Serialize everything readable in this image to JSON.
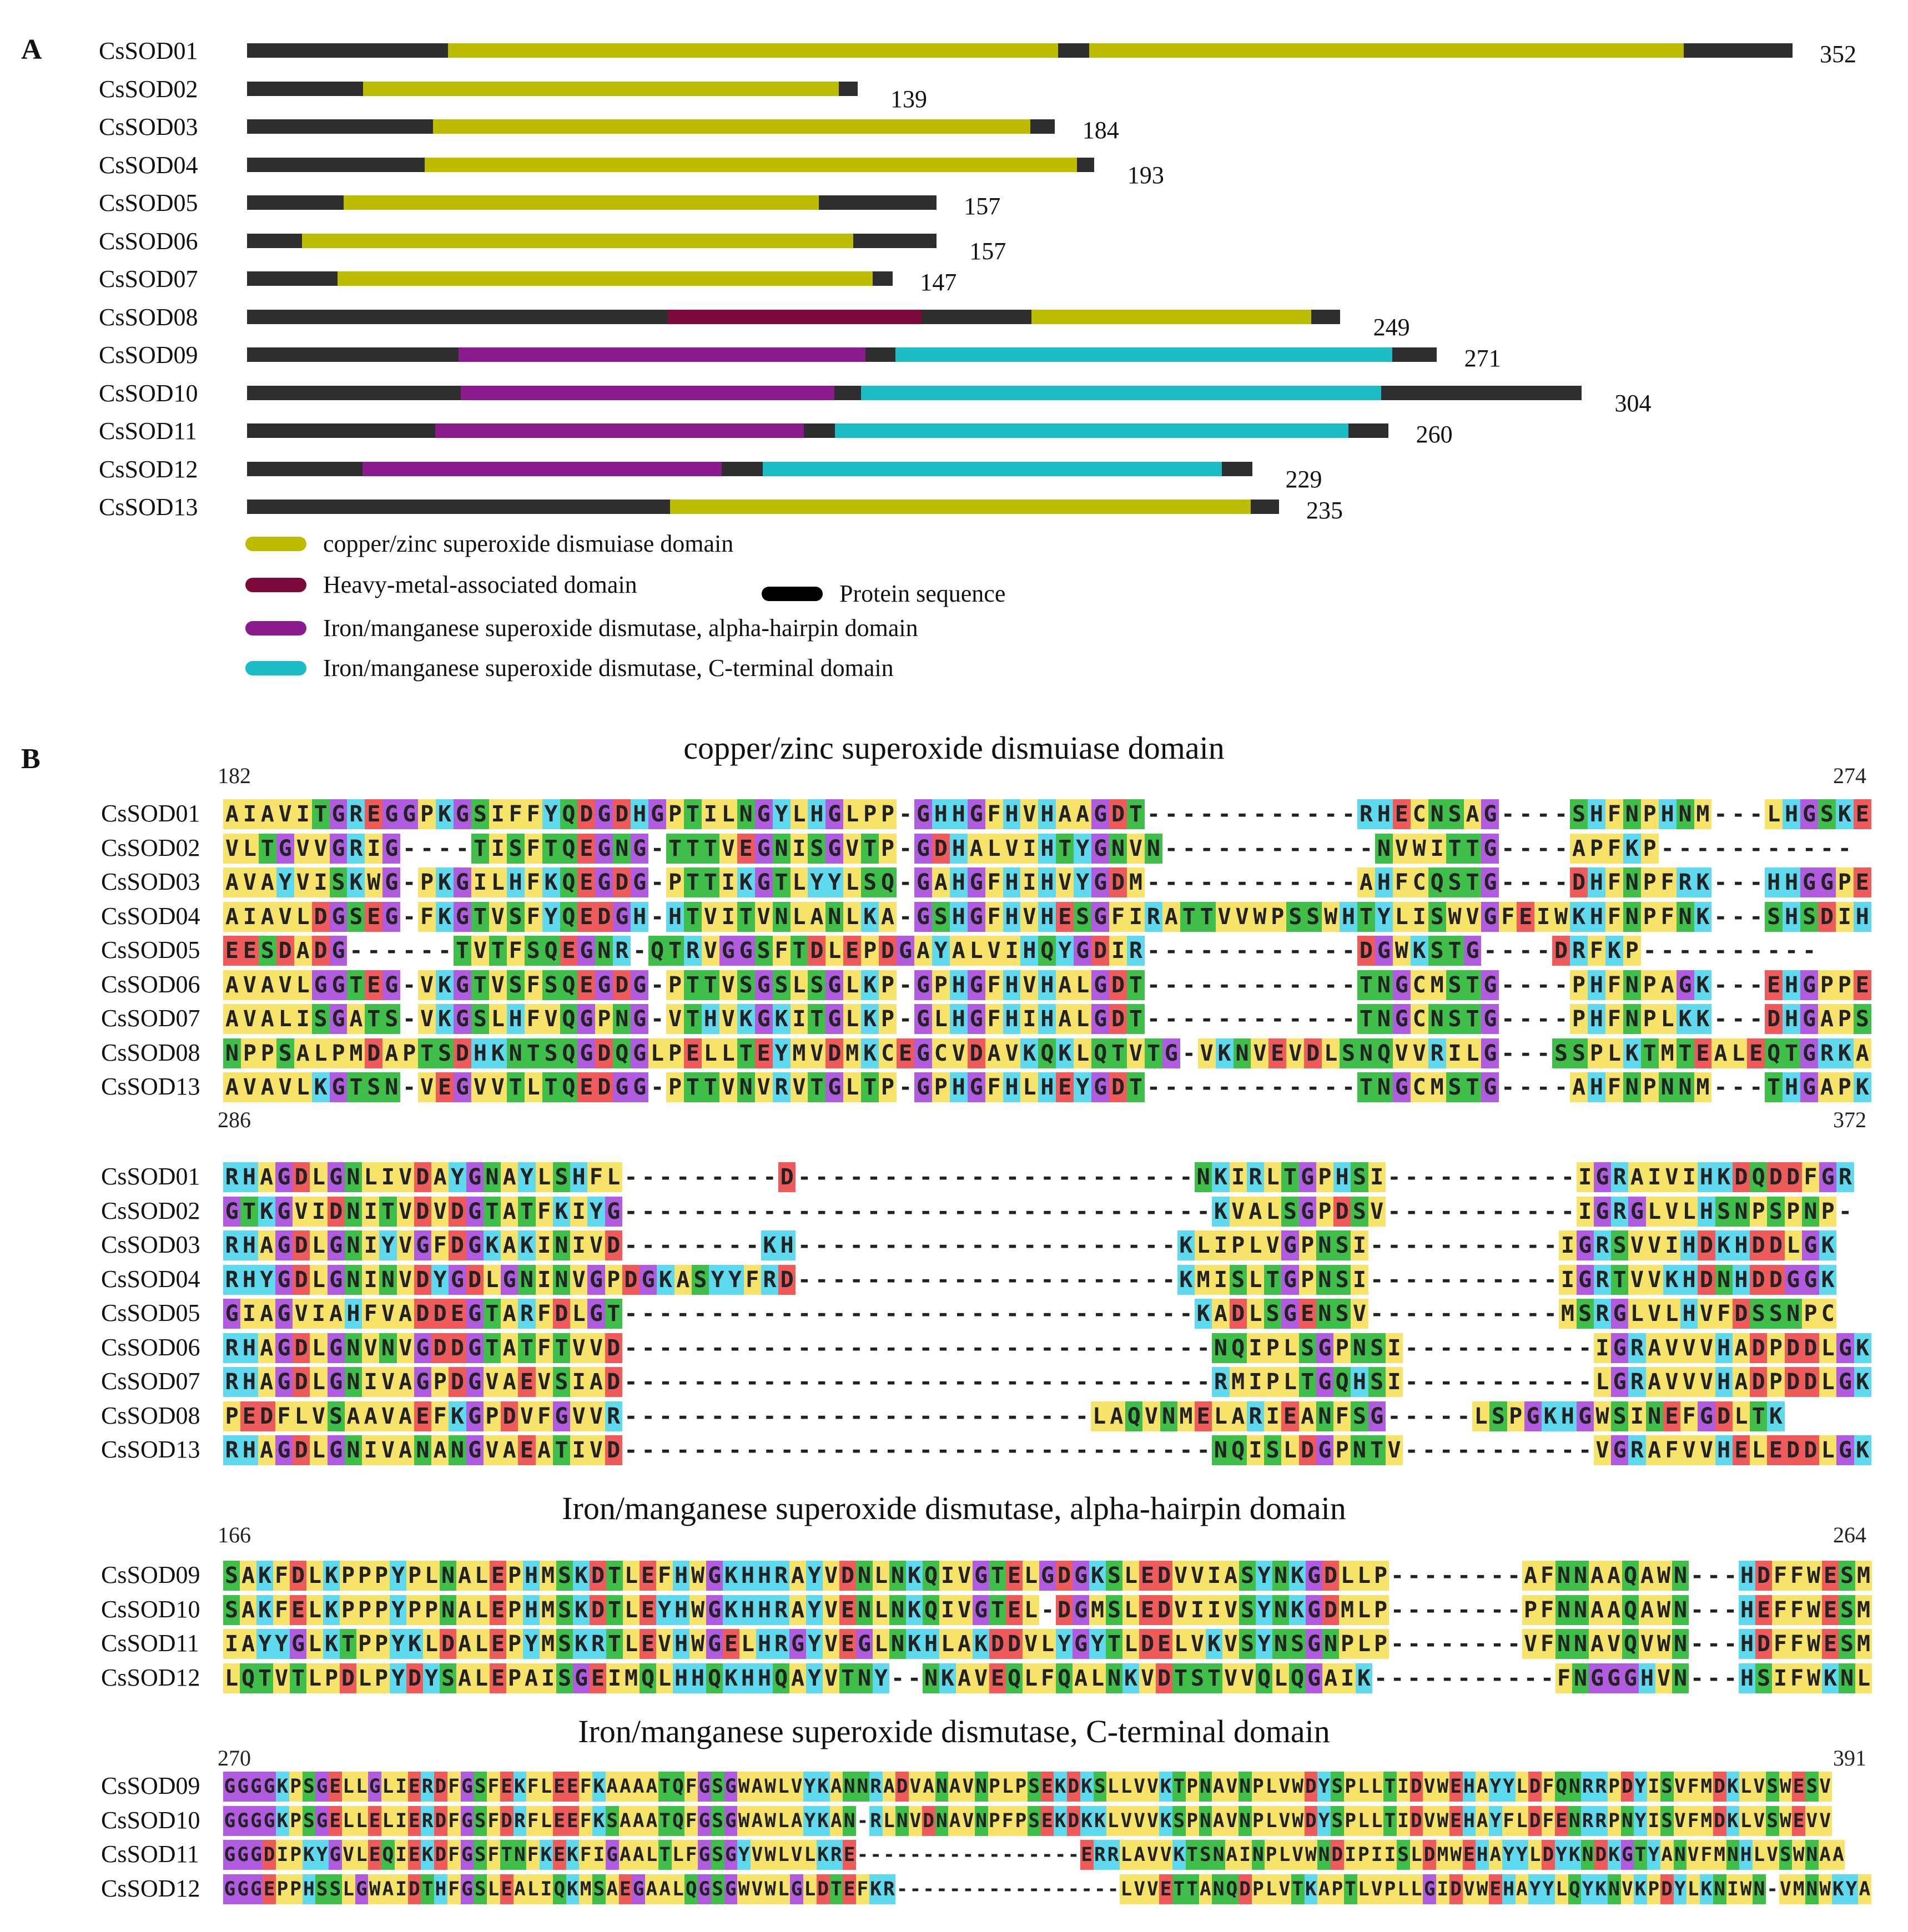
{
  "panelA": {
    "letter": "A",
    "proteins": [
      {
        "name": "CsSOD01",
        "length": 352,
        "segments": [
          [
            "P",
            0,
            0.13
          ],
          [
            "CZ",
            0.13,
            0.525
          ],
          [
            "P",
            0.525,
            0.545
          ],
          [
            "CZ",
            0.545,
            0.93
          ],
          [
            "P",
            0.93,
            1
          ]
        ]
      },
      {
        "name": "CsSOD02",
        "length": 139,
        "segments": [
          [
            "P",
            0,
            0.19
          ],
          [
            "CZ",
            0.19,
            0.97
          ],
          [
            "P",
            0.97,
            1
          ]
        ]
      },
      {
        "name": "CsSOD03",
        "length": 184,
        "segments": [
          [
            "P",
            0,
            0.23
          ],
          [
            "CZ",
            0.23,
            0.97
          ],
          [
            "P",
            0.97,
            1
          ]
        ]
      },
      {
        "name": "CsSOD04",
        "length": 193,
        "segments": [
          [
            "P",
            0,
            0.21
          ],
          [
            "CZ",
            0.21,
            0.98
          ],
          [
            "P",
            0.98,
            1
          ]
        ]
      },
      {
        "name": "CsSOD05",
        "length": 157,
        "segments": [
          [
            "P",
            0,
            0.14
          ],
          [
            "CZ",
            0.14,
            0.83
          ],
          [
            "P",
            0.83,
            1
          ]
        ]
      },
      {
        "name": "CsSOD06",
        "length": 157,
        "segments": [
          [
            "P",
            0,
            0.08
          ],
          [
            "CZ",
            0.08,
            0.88
          ],
          [
            "P",
            0.88,
            1
          ]
        ]
      },
      {
        "name": "CsSOD07",
        "length": 147,
        "segments": [
          [
            "P",
            0,
            0.14
          ],
          [
            "CZ",
            0.14,
            0.97
          ],
          [
            "P",
            0.97,
            1
          ]
        ]
      },
      {
        "name": "CsSOD08",
        "length": 249,
        "segments": [
          [
            "P",
            0,
            0.385
          ],
          [
            "HM",
            0.385,
            0.617
          ],
          [
            "P",
            0.617,
            0.718
          ],
          [
            "CZ",
            0.718,
            0.974
          ],
          [
            "P",
            0.974,
            1
          ]
        ]
      },
      {
        "name": "CsSOD09",
        "length": 271,
        "segments": [
          [
            "P",
            0,
            0.178
          ],
          [
            "FA",
            0.178,
            0.52
          ],
          [
            "P",
            0.52,
            0.545
          ],
          [
            "FC",
            0.545,
            0.963
          ],
          [
            "P",
            0.963,
            1
          ]
        ]
      },
      {
        "name": "CsSOD10",
        "length": 304,
        "segments": [
          [
            "P",
            0,
            0.16
          ],
          [
            "FA",
            0.16,
            0.44
          ],
          [
            "P",
            0.44,
            0.46
          ],
          [
            "FC",
            0.46,
            0.85
          ],
          [
            "P",
            0.85,
            1
          ]
        ]
      },
      {
        "name": "CsSOD11",
        "length": 260,
        "segments": [
          [
            "P",
            0,
            0.165
          ],
          [
            "FA",
            0.165,
            0.488
          ],
          [
            "P",
            0.488,
            0.515
          ],
          [
            "FC",
            0.515,
            0.965
          ],
          [
            "P",
            0.965,
            1
          ]
        ]
      },
      {
        "name": "CsSOD12",
        "length": 229,
        "segments": [
          [
            "P",
            0,
            0.115
          ],
          [
            "FA",
            0.115,
            0.472
          ],
          [
            "P",
            0.472,
            0.513
          ],
          [
            "FC",
            0.513,
            0.97
          ],
          [
            "P",
            0.97,
            1
          ]
        ]
      },
      {
        "name": "CsSOD13",
        "length": 235,
        "segments": [
          [
            "P",
            0,
            0.41
          ],
          [
            "CZ",
            0.41,
            0.973
          ],
          [
            "P",
            0.973,
            1
          ]
        ]
      }
    ],
    "legend": {
      "cz": "copper/zinc superoxide dismuiase domain",
      "hm": "Heavy-metal-associated domain",
      "protein": "Protein sequence",
      "fa": "Iron/manganese superoxide dismutase, alpha-hairpin domain",
      "fc": "Iron/manganese superoxide dismutase, C-terminal domain"
    }
  },
  "colors": {
    "CZ": "#bcbc00",
    "HM": "#7c0a3c",
    "FA": "#8a1a8e",
    "FC": "#1cbcc4",
    "P": "#2e2e2e"
  },
  "residueColors": {
    "A": "#f7e36a",
    "V": "#f7e36a",
    "L": "#f7e36a",
    "I": "#f7e36a",
    "M": "#f7e36a",
    "F": "#f7e36a",
    "W": "#f7e36a",
    "C": "#f7e36a",
    "Y": "#5ed9ee",
    "H": "#5ed9ee",
    "K": "#5ed9ee",
    "R": "#5ed9ee",
    "D": "#ef5b5b",
    "E": "#ef5b5b",
    "S": "#3fbe49",
    "T": "#3fbe49",
    "N": "#3fbe49",
    "Q": "#3fbe49",
    "G": "#b15ce0",
    "P": "#f7e36a",
    "-": "#ffffff"
  },
  "panelB": {
    "letter": "B",
    "blocks": [
      {
        "title": "copper/zinc superoxide dismuiase domain",
        "startPos": "182",
        "endPos": "274",
        "rows": [
          {
            "name": "CsSOD01",
            "seq": "AIAVITGREGGPKGSIFFYQDGDHGPTILNGYLHGLPP-GHHGFHVHAAGDT------------RHECNSAG----SHFNPHNM---LHGSKE"
          },
          {
            "name": "CsSOD02",
            "seq": "VLTGVVGRIG----TISFTQEGNG-TTTVEGNISGVTP-GDHALVIHTYGNVN------------NVWITTG----APFKP-----------"
          },
          {
            "name": "CsSOD03",
            "seq": "AVAYVISKWG-PKGILHFKQEGDG-PTTIKGTLYYLSQ-GAHGFHIHVYGDM------------AHFCQSTG----DHFNPFRK---HHGGPE"
          },
          {
            "name": "CsSOD04",
            "seq": "AIAVLDGSEG-FKGTVSFYQEDGH-HTVITVNLANLKA-GSHGFHVHESGFIRATTVVWPSSWHTYLISWVGFEIWKHFNPFNK---SHSDIH"
          },
          {
            "name": "CsSOD05",
            "seq": "EESDADG------TVTFSQEGNR-QTRVGGSFTDLEPDGAYALVIHQYGDIR------------DGWKSTG----DRFKP----------"
          },
          {
            "name": "CsSOD06",
            "seq": "AVAVLGGTEG-VKGTVSFSQEGDG-PTTVSGSLSGLKP-GPHGFHVHALGDT------------TNGCMSTG----PHFNPAGK---EHGPPE"
          },
          {
            "name": "CsSOD07",
            "seq": "AVALISGATS-VKGSLHFVQGPNG-VTHVKGKITGLKP-GLHGFHIHALGDT------------TNGCNSTG----PHFNPLKK---DHGAPS"
          },
          {
            "name": "CsSOD08",
            "seq": "NPPSALPMDAPTSDHKNTSQGDQGLPELLTEYMVDMKCEGCVDAVKQKLQTVTG-VKNVEVDLSNQVVRILG---SSPLKTMTEALEQTGRKA"
          },
          {
            "name": "CsSOD13",
            "seq": "AVAVLKGTSN-VEGVVTLTQEDGG-PTTVNVRVTGLTP-GPHGFHLHEYGDT------------TNGCMSTG----AHFNPNNM---THGAPK"
          }
        ]
      },
      {
        "title": "",
        "startPos": "286",
        "endPos": "372",
        "rows": [
          {
            "name": "CsSOD01",
            "seq": "RHAGDLGNLIVDAYGNAYLSHFL---------D-----------------------NKIRLTGPHSI-----------IGRAIVIHKDQDDFGR"
          },
          {
            "name": "CsSOD02",
            "seq": "GTKGVIDNITVDVDGTATFKIYG----------------------------------KVALSGPDSV-----------IGRGLVLHSNPSPNP-"
          },
          {
            "name": "CsSOD03",
            "seq": "RHAGDLGNIYVGFDGKAKINIVD--------KH----------------------KLIPLVGPNSI-----------IGRSVVIHDKHDDLGK"
          },
          {
            "name": "CsSOD04",
            "seq": "RHYGDLGNINVDYGDLGNINVGPDGKASYYFRD----------------------KMISLTGPNSI-----------IGRTVVKHDNHDDGGK"
          },
          {
            "name": "CsSOD05",
            "seq": "GIAGVIAHFVADDEGTARFDLGT---------------------------------KADLSGENSV-----------MSRGLVLHVFDSSNPC"
          },
          {
            "name": "CsSOD06",
            "seq": "RHAGDLGNVNVGDDGTATFTVVD----------------------------------NQIPLSGPNSI-----------IGRAVVVHADPDDLGK"
          },
          {
            "name": "CsSOD07",
            "seq": "RHAGDLGNIVAGPDGVAEVSIAD----------------------------------RMIPLTGQHSI-----------LGRAVVVHADPDDLGK"
          },
          {
            "name": "CsSOD08",
            "seq": "PEDFLVSAAVAEFKGPDVFGVVR---------------------------LAQVNMELARIEANFSG-----LSPGKHGWSINEFGDLTK"
          },
          {
            "name": "CsSOD13",
            "seq": "RHAGDLGNIVANANGVAEATIVD----------------------------------NQISLDGPNTV-----------VGRAFVVHELEDDLGK"
          }
        ]
      },
      {
        "title": "Iron/manganese superoxide dismutase, alpha-hairpin domain",
        "startPos": "166",
        "endPos": "264",
        "rows": [
          {
            "name": "CsSOD09",
            "seq": "SAKFDLKPPPYPLNALEPHMSKDTLEFHWGKHHRAYVDNLNKQIVGTELGDGKSLEDVVIASYNKGDLLP--------AFNNAAQAWN---HDFFWESM"
          },
          {
            "name": "CsSOD10",
            "seq": "SAKFELKPPPYPPNALEPHMSKDTLEYHWGKHHRAYVENLNKQIVGTEL-DGMSLEDVIIVSYNKGDMLP--------PFNNAAQAWN---HEFFWESM"
          },
          {
            "name": "CsSOD11",
            "seq": "IAYYGLKTPPYKLDALEPYMSKRTLEVHWGELHRGYVEGLNKHLAKDDVLYGYTLDELVKVSYNSGNPLP--------VFNNAVQVWN---HDFFWESM"
          },
          {
            "name": "CsSOD12",
            "seq": "LQTVTLPDLPYDYSALEPAISGEIMQLHHQKHHQAYVTNY--NKAVEQLFQALNKVDTSTVVQLQGAIK-----------FNGGGHVN---HSIFWKNL"
          }
        ]
      },
      {
        "title": "Iron/manganese superoxide dismutase, C-terminal domain",
        "startPos": "270",
        "endPos": "391",
        "rows": [
          {
            "name": "CsSOD09",
            "seq": "GGGGKPSGELLGLIERDFGSFEKFLEEFKAAAATQFGSGWAWLVYKANNRADVANAVNPLPSEKDKSLLVVKTPNAVNPLVWDYSPLLTIDVWEHAYYLDFQNRRPDYISVFMDKLVSWESV"
          },
          {
            "name": "CsSOD10",
            "seq": "GGGGKPSGELLELIERDFGSFDRFLEEFKSAAATQFGSGWAWLAYKAN-RLNVDNAVNPFPSEKDKKLVVVKSPNAVNPLVWDYSPLLTIDVWEHAYFLDFENRRPNYISVFMDKLVSWEVV"
          },
          {
            "name": "CsSOD11",
            "seq": "GGGDIPKYGVLEQIEKDFGSFTNFKEKFIGAALTLFGSGYVWLVLKRE-----------------ERRLAVVKTSNAINPLVWNDIPIISLDMWEHAYYLDYKNDKGTYANVFMNHLVSWNAA"
          },
          {
            "name": "CsSOD12",
            "seq": "GGGEPPHSSLGWAIDTHFGSLEALIQKMSAEGAALQGSGWVWLGLDTEFKR-----------------LVVETTANQDPLVTKAPTLVPLLGIDVWEHAYYLQYKNVKPDYLKNIWN-VMNWKYA"
          }
        ]
      }
    ]
  }
}
